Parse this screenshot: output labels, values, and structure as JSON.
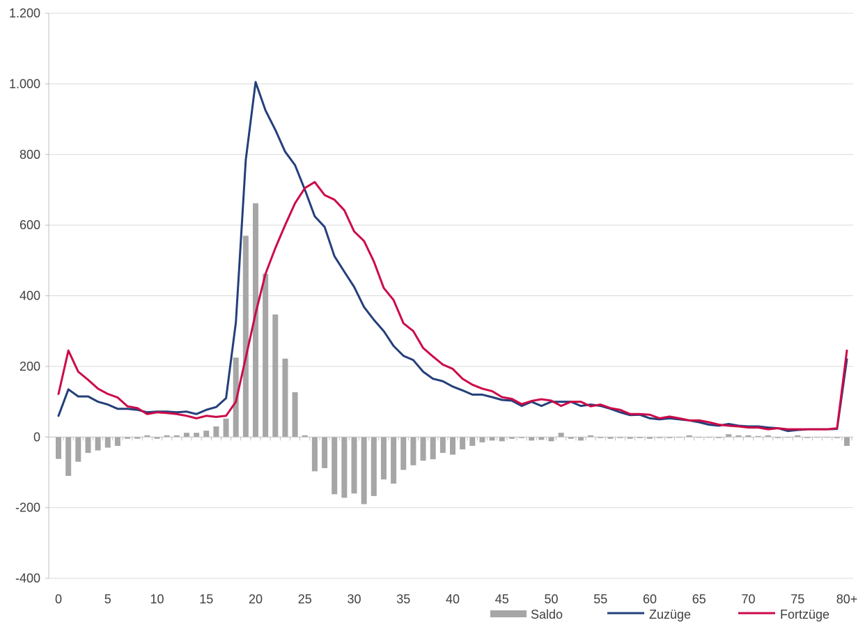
{
  "chart_data": {
    "type": "bar+line",
    "title": "",
    "xlabel": "",
    "ylabel": "",
    "ylim": [
      -400,
      1200
    ],
    "yticks": [
      1200,
      1000,
      800,
      600,
      400,
      200,
      0,
      -200,
      -400
    ],
    "ytick_labels": [
      "1.200",
      "1.000",
      "800",
      "600",
      "400",
      "200",
      "0",
      "-200",
      "-400"
    ],
    "xticks": [
      0,
      5,
      10,
      15,
      20,
      25,
      30,
      35,
      40,
      45,
      50,
      55,
      60,
      65,
      70,
      75,
      80
    ],
    "xtick_labels": [
      "0",
      "5",
      "10",
      "15",
      "20",
      "25",
      "30",
      "35",
      "40",
      "45",
      "50",
      "55",
      "60",
      "65",
      "70",
      "75",
      "80+"
    ],
    "grid": "horizontal",
    "legend_position": "bottom-right",
    "x": [
      0,
      1,
      2,
      3,
      4,
      5,
      6,
      7,
      8,
      9,
      10,
      11,
      12,
      13,
      14,
      15,
      16,
      17,
      18,
      19,
      20,
      21,
      22,
      23,
      24,
      25,
      26,
      27,
      28,
      29,
      30,
      31,
      32,
      33,
      34,
      35,
      36,
      37,
      38,
      39,
      40,
      41,
      42,
      43,
      44,
      45,
      46,
      47,
      48,
      49,
      50,
      51,
      52,
      53,
      54,
      55,
      56,
      57,
      58,
      59,
      60,
      61,
      62,
      63,
      64,
      65,
      66,
      67,
      68,
      69,
      70,
      71,
      72,
      73,
      74,
      75,
      76,
      77,
      78,
      79,
      80
    ],
    "series": [
      {
        "name": "Saldo",
        "kind": "bar",
        "color": "#a6a6a6",
        "values": [
          -62,
          -110,
          -70,
          -45,
          -38,
          -30,
          -25,
          -5,
          -5,
          5,
          -5,
          5,
          5,
          12,
          12,
          18,
          30,
          52,
          225,
          570,
          662,
          462,
          347,
          222,
          127,
          5,
          -97,
          -88,
          -162,
          -172,
          -160,
          -190,
          -167,
          -120,
          -132,
          -93,
          -80,
          -67,
          -63,
          -45,
          -50,
          -35,
          -25,
          -15,
          -10,
          -12,
          -5,
          -3,
          -10,
          -8,
          -12,
          12,
          -5,
          -10,
          5,
          -3,
          -5,
          -3,
          -5,
          -3,
          -5,
          -3,
          -3,
          -2,
          5,
          -2,
          -2,
          -3,
          8,
          5,
          5,
          3,
          5,
          -3,
          -2,
          5,
          -3,
          -2,
          -2,
          -3,
          -25
        ]
      },
      {
        "name": "Zuzüge",
        "kind": "line",
        "color": "#243f7a",
        "values": [
          60,
          135,
          115,
          115,
          100,
          92,
          80,
          80,
          77,
          70,
          72,
          72,
          70,
          72,
          65,
          77,
          85,
          110,
          325,
          785,
          1005,
          925,
          870,
          808,
          770,
          700,
          625,
          595,
          512,
          468,
          425,
          368,
          332,
          300,
          258,
          230,
          218,
          185,
          165,
          158,
          143,
          132,
          120,
          120,
          113,
          105,
          103,
          88,
          100,
          88,
          100,
          100,
          100,
          88,
          92,
          88,
          80,
          70,
          62,
          63,
          53,
          50,
          53,
          50,
          47,
          42,
          35,
          32,
          37,
          32,
          30,
          30,
          27,
          25,
          17,
          20,
          22,
          22,
          22,
          23,
          220
        ]
      },
      {
        "name": "Fortzüge",
        "kind": "line",
        "color": "#cc0a48",
        "values": [
          122,
          245,
          185,
          162,
          137,
          122,
          112,
          87,
          82,
          65,
          70,
          68,
          65,
          60,
          53,
          60,
          57,
          60,
          100,
          225,
          350,
          462,
          535,
          600,
          662,
          705,
          722,
          685,
          672,
          642,
          582,
          555,
          497,
          422,
          388,
          322,
          300,
          252,
          228,
          205,
          193,
          165,
          148,
          137,
          130,
          113,
          108,
          93,
          102,
          107,
          103,
          88,
          100,
          100,
          87,
          92,
          82,
          77,
          65,
          65,
          63,
          53,
          58,
          53,
          47,
          47,
          42,
          35,
          32,
          30,
          27,
          27,
          22,
          25,
          22,
          22,
          22,
          22,
          22,
          25,
          245
        ]
      }
    ]
  },
  "legend": {
    "items": [
      {
        "label": "Saldo",
        "color": "#a6a6a6"
      },
      {
        "label": "Zuzüge",
        "color": "#243f7a"
      },
      {
        "label": "Fortzüge",
        "color": "#cc0a48"
      }
    ]
  }
}
